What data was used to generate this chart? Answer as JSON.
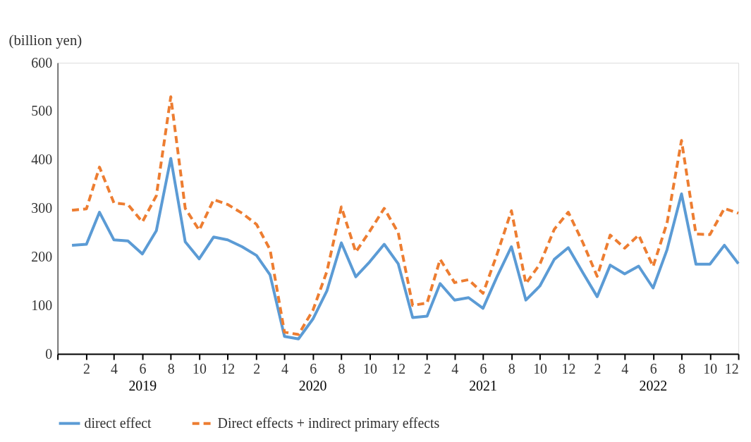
{
  "chart_data": {
    "type": "line",
    "ylabel": "(billion yen)",
    "x": [
      "2019-01",
      "2019-02",
      "2019-03",
      "2019-04",
      "2019-05",
      "2019-06",
      "2019-07",
      "2019-08",
      "2019-09",
      "2019-10",
      "2019-11",
      "2019-12",
      "2020-01",
      "2020-02",
      "2020-03",
      "2020-04",
      "2020-05",
      "2020-06",
      "2020-07",
      "2020-08",
      "2020-09",
      "2020-10",
      "2020-11",
      "2020-12",
      "2021-01",
      "2021-02",
      "2021-03",
      "2021-04",
      "2021-05",
      "2021-06",
      "2021-07",
      "2021-08",
      "2021-09",
      "2021-10",
      "2021-11",
      "2021-12",
      "2022-01",
      "2022-02",
      "2022-03",
      "2022-04",
      "2022-05",
      "2022-06",
      "2022-07",
      "2022-08",
      "2022-09",
      "2022-10",
      "2022-11",
      "2022-12"
    ],
    "series": [
      {
        "name": "direct effect",
        "color": "#5b9bd5",
        "line_style": "solid",
        "values": [
          224,
          226,
          292,
          235,
          233,
          206,
          254,
          403,
          231,
          196,
          241,
          235,
          221,
          203,
          163,
          36,
          31,
          72,
          130,
          229,
          159,
          190,
          226,
          186,
          75,
          78,
          145,
          111,
          116,
          94,
          159,
          221,
          111,
          140,
          195,
          219,
          168,
          118,
          183,
          165,
          181,
          136,
          215,
          330,
          185,
          185,
          224,
          186
        ]
      },
      {
        "name": "Direct effects + indirect primary effects",
        "color": "#ed7d31",
        "line_style": "dashed",
        "values": [
          296,
          299,
          385,
          311,
          308,
          272,
          326,
          530,
          300,
          255,
          318,
          308,
          290,
          267,
          215,
          45,
          40,
          90,
          170,
          303,
          210,
          253,
          300,
          250,
          100,
          105,
          195,
          147,
          153,
          125,
          205,
          295,
          145,
          185,
          257,
          292,
          230,
          160,
          245,
          218,
          245,
          180,
          270,
          440,
          247,
          246,
          300,
          290
        ]
      }
    ],
    "xlim": [
      "2018-12",
      "2022-12"
    ],
    "xticks": [
      {
        "value": "2018-12",
        "label": null
      },
      {
        "value": "2019-02",
        "label": "2"
      },
      {
        "value": "2019-04",
        "label": "4"
      },
      {
        "value": "2019-06",
        "label": "6"
      },
      {
        "value": "2019-08",
        "label": "8"
      },
      {
        "value": "2019-10",
        "label": "10"
      },
      {
        "value": "2019-12",
        "label": "12"
      },
      {
        "value": "2020-02",
        "label": "2"
      },
      {
        "value": "2020-04",
        "label": "4"
      },
      {
        "value": "2020-06",
        "label": "6"
      },
      {
        "value": "2020-08",
        "label": "8"
      },
      {
        "value": "2020-10",
        "label": "10"
      },
      {
        "value": "2020-12",
        "label": "12"
      },
      {
        "value": "2021-02",
        "label": "2"
      },
      {
        "value": "2021-04",
        "label": "4"
      },
      {
        "value": "2021-06",
        "label": "6"
      },
      {
        "value": "2021-08",
        "label": "8"
      },
      {
        "value": "2021-10",
        "label": "10"
      },
      {
        "value": "2021-12",
        "label": "12"
      },
      {
        "value": "2022-02",
        "label": "2"
      },
      {
        "value": "2022-04",
        "label": "4"
      },
      {
        "value": "2022-06",
        "label": "6"
      },
      {
        "value": "2022-08",
        "label": "8"
      },
      {
        "value": "2022-10",
        "label": "10"
      },
      {
        "value": "2022-12",
        "label": "12"
      }
    ],
    "ylim": [
      0,
      600
    ],
    "yticks": [
      0,
      100,
      200,
      300,
      400,
      500,
      600
    ],
    "annotations": [
      "2019",
      "2020",
      "2021",
      "2022"
    ],
    "grid": false,
    "legend": "bottom",
    "marker": "none"
  }
}
